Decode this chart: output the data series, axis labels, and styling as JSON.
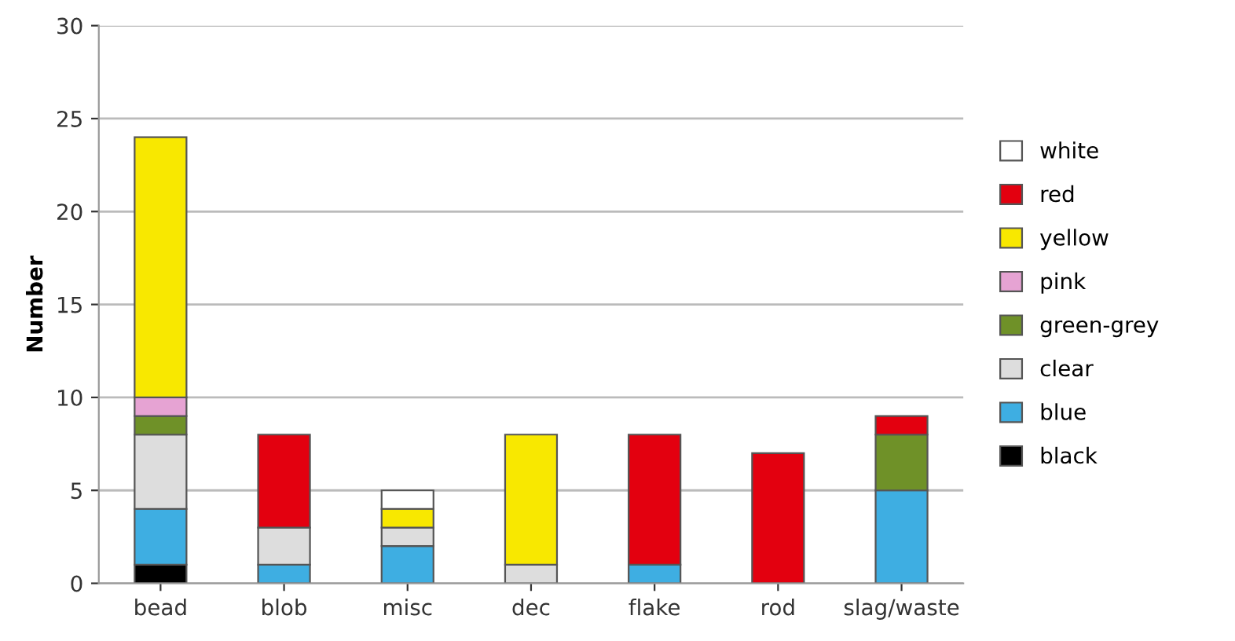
{
  "chart_data": {
    "type": "bar",
    "stacked": true,
    "ylabel": "Number",
    "categories": [
      "bead",
      "blob",
      "misc",
      "dec",
      "flake",
      "rod",
      "slag/waste"
    ],
    "series": [
      {
        "name": "black",
        "color": "#000000",
        "values": [
          1,
          null,
          null,
          null,
          null,
          null,
          null
        ]
      },
      {
        "name": "blue",
        "color": "#3eaee2",
        "values": [
          3,
          1,
          2,
          null,
          1,
          null,
          5
        ]
      },
      {
        "name": "clear",
        "color": "#dddddd",
        "values": [
          4,
          2,
          1,
          1,
          null,
          null,
          null
        ]
      },
      {
        "name": "green-grey",
        "color": "#6f9128",
        "values": [
          1,
          null,
          null,
          null,
          null,
          null,
          3
        ]
      },
      {
        "name": "pink",
        "color": "#e6a3d3",
        "values": [
          1,
          null,
          null,
          null,
          null,
          null,
          null
        ]
      },
      {
        "name": "yellow",
        "color": "#f8e800",
        "values": [
          14,
          null,
          1,
          7,
          null,
          null,
          null
        ]
      },
      {
        "name": "red",
        "color": "#e3000f",
        "values": [
          null,
          5,
          null,
          null,
          7,
          7,
          1
        ]
      },
      {
        "name": "white",
        "color": "#ffffff",
        "values": [
          null,
          null,
          1,
          null,
          null,
          null,
          null
        ]
      }
    ],
    "ylim": [
      0,
      30
    ],
    "yticks": [
      0,
      5,
      10,
      15,
      20,
      25,
      30
    ],
    "grid": "y",
    "legend": "right"
  }
}
